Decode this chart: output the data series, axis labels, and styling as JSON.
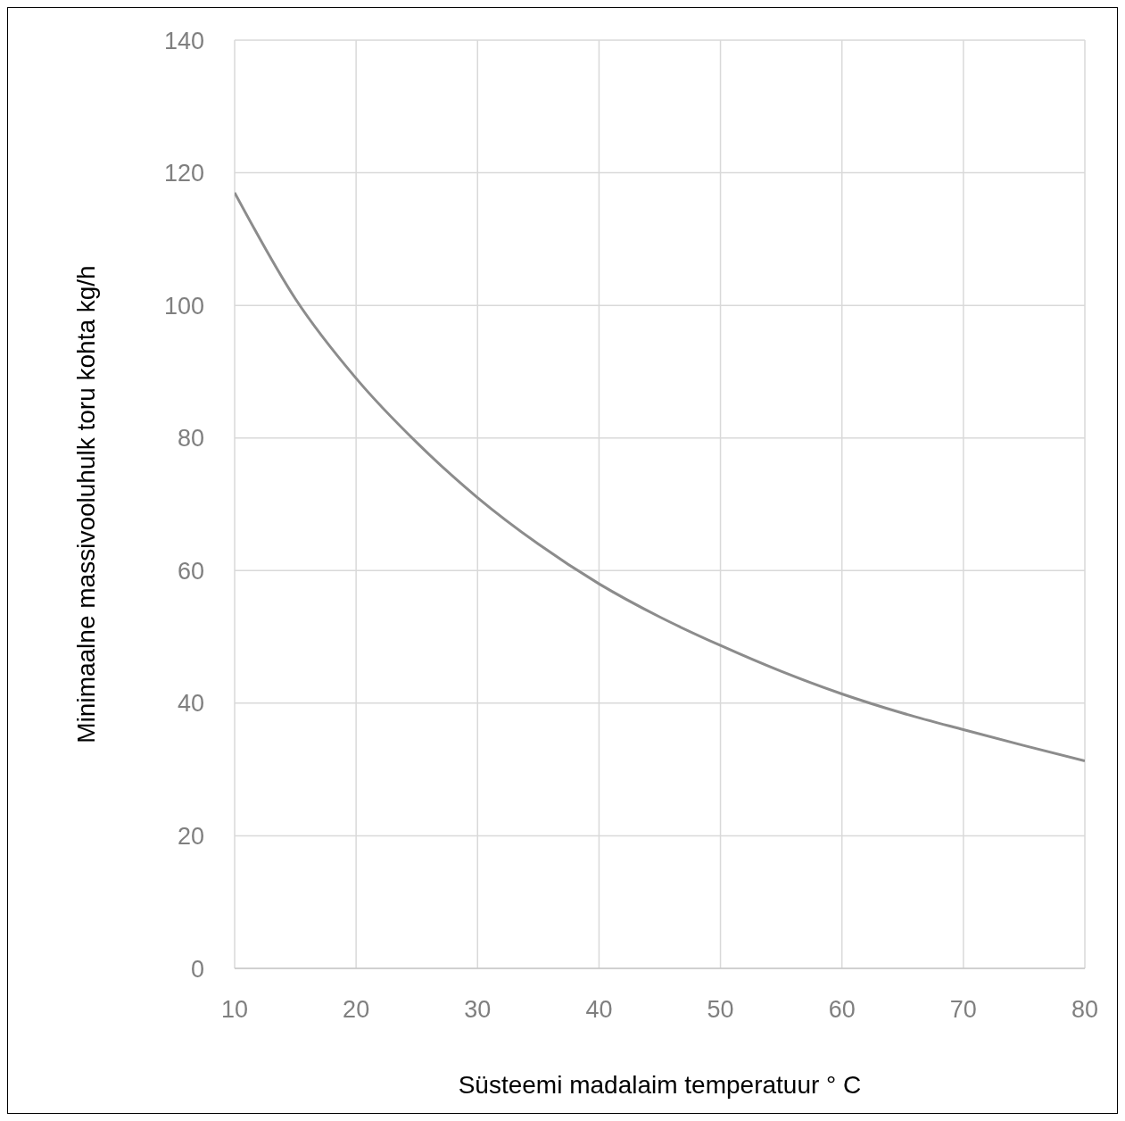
{
  "chart_data": {
    "type": "line",
    "xlabel": "Süsteemi madalaim temperatuur ° C",
    "ylabel": "Minimaalne massivooluhulk toru kohta kg/h",
    "x": [
      10,
      15,
      20,
      25,
      30,
      35,
      40,
      45,
      50,
      55,
      60,
      65,
      70,
      75,
      80
    ],
    "series": [
      {
        "color": "#8c8c8c",
        "values": [
          117,
          101,
          89,
          79.3,
          71,
          64,
          58,
          53,
          48.7,
          44.8,
          41.4,
          38.5,
          36,
          33.6,
          31.3
        ]
      }
    ],
    "xlim": [
      10,
      80
    ],
    "xticks": [
      10,
      20,
      30,
      40,
      50,
      60,
      70,
      80
    ],
    "ylim": [
      0,
      140
    ],
    "yticks": [
      0,
      20,
      40,
      60,
      80,
      100,
      120,
      140
    ],
    "grid": true,
    "legend": false,
    "marker": "none",
    "line_style": "solid"
  }
}
